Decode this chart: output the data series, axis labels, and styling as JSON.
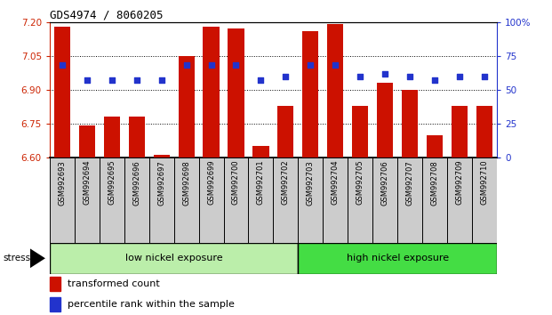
{
  "title": "GDS4974 / 8060205",
  "samples": [
    "GSM992693",
    "GSM992694",
    "GSM992695",
    "GSM992696",
    "GSM992697",
    "GSM992698",
    "GSM992699",
    "GSM992700",
    "GSM992701",
    "GSM992702",
    "GSM992703",
    "GSM992704",
    "GSM992705",
    "GSM992706",
    "GSM992707",
    "GSM992708",
    "GSM992709",
    "GSM992710"
  ],
  "bar_values": [
    7.18,
    6.74,
    6.78,
    6.78,
    6.61,
    7.05,
    7.18,
    7.17,
    6.65,
    6.83,
    7.16,
    7.19,
    6.83,
    6.93,
    6.9,
    6.7,
    6.83,
    6.83
  ],
  "dot_percentiles": [
    68,
    57,
    57,
    57,
    57,
    68,
    68,
    68,
    57,
    60,
    68,
    68,
    60,
    62,
    60,
    57,
    60,
    60
  ],
  "ylim_left": [
    6.6,
    7.2
  ],
  "ylim_right": [
    0,
    100
  ],
  "yticks_left": [
    6.6,
    6.75,
    6.9,
    7.05,
    7.2
  ],
  "yticks_right": [
    0,
    25,
    50,
    75,
    100
  ],
  "bar_color": "#cc1100",
  "dot_color": "#2233cc",
  "group1_label": "low nickel exposure",
  "group2_label": "high nickel exposure",
  "group1_count": 10,
  "group2_count": 8,
  "group1_color": "#bbeeaa",
  "group2_color": "#44dd44",
  "sample_box_color": "#cccccc",
  "stress_label": "stress",
  "legend_bar": "transformed count",
  "legend_dot": "percentile rank within the sample",
  "left_axis_color": "#cc2200",
  "right_axis_color": "#2233cc",
  "title_fontsize": 9,
  "tick_fontsize": 7.5,
  "sample_fontsize": 6,
  "group_fontsize": 8,
  "legend_fontsize": 8
}
